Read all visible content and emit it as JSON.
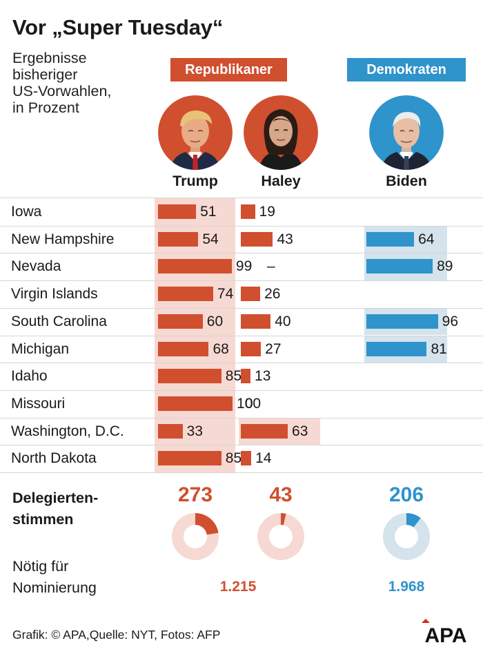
{
  "title": "Vor „Super Tuesday“",
  "subtitle": "Ergebnisse\nbisheriger\nUS-Vorwahlen,\nin Prozent",
  "parties": {
    "rep": "Republikaner",
    "dem": "Demokraten"
  },
  "colors": {
    "rep": "#d04f2f",
    "rep_light": "#f6d9d2",
    "dem": "#2f93cc",
    "dem_light": "#d4e3ec",
    "text": "#1a1a1a",
    "divider": "#d6d6d6"
  },
  "candidates": [
    {
      "name": "Trump",
      "party": "rep",
      "photo_icon": "trump-portrait"
    },
    {
      "name": "Haley",
      "party": "rep",
      "photo_icon": "haley-portrait"
    },
    {
      "name": "Biden",
      "party": "dem",
      "photo_icon": "biden-portrait"
    }
  ],
  "chart_data": {
    "type": "bar",
    "title": "Vor „Super Tuesday“",
    "subtitle": "Ergebnisse bisheriger US-Vorwahlen, in Prozent",
    "unit": "Prozent",
    "xlim": [
      0,
      100
    ],
    "categories": [
      "Iowa",
      "New Hampshire",
      "Nevada",
      "Virgin Islands",
      "South Carolina",
      "Michigan",
      "Idaho",
      "Missouri",
      "Washington, D.C.",
      "North Dakota"
    ],
    "series": [
      {
        "name": "Trump",
        "party": "Republikaner",
        "values": [
          51,
          54,
          99,
          74,
          60,
          68,
          85,
          100,
          33,
          85
        ]
      },
      {
        "name": "Haley",
        "party": "Republikaner",
        "values": [
          19,
          43,
          null,
          26,
          40,
          27,
          13,
          0,
          63,
          14
        ],
        "missing_label": "–"
      },
      {
        "name": "Biden",
        "party": "Demokraten",
        "values": [
          null,
          64,
          89,
          null,
          96,
          81,
          null,
          null,
          null,
          null
        ]
      }
    ],
    "delegates": {
      "label": "Delegierten-\nstimmen",
      "needed_label": "Nötig für\nNominierung",
      "items": [
        {
          "name": "Trump",
          "value": 273,
          "value_label": "273",
          "needed": 1215,
          "needed_label": "1.215"
        },
        {
          "name": "Haley",
          "value": 43,
          "value_label": "43",
          "needed": 1215
        },
        {
          "name": "Biden",
          "value": 206,
          "value_label": "206",
          "needed": 1968,
          "needed_label": "1.968"
        }
      ]
    }
  },
  "footer": "Grafik: © APA,Quelle: NYT, Fotos: AFP",
  "logo_text": "APA"
}
